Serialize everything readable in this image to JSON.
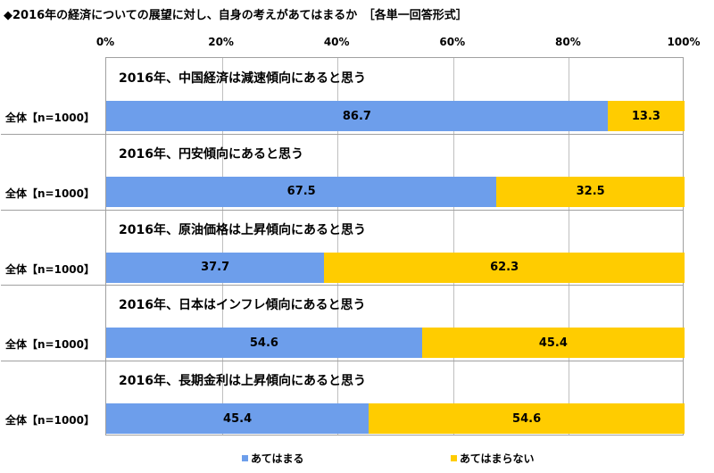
{
  "title": "◆2016年の経済についての展望に対し、自身の考えがあてはまるか　［各単一回答形式］",
  "colors": {
    "series_1": "#6d9eeb",
    "series_2": "#ffcc00"
  },
  "chart_data": {
    "type": "bar",
    "orientation": "horizontal",
    "stacked": true,
    "xlim": [
      0,
      100
    ],
    "tick_labels": [
      "0%",
      "20%",
      "40%",
      "60%",
      "80%",
      "100%"
    ],
    "legend_position": "bottom",
    "series": [
      {
        "name": "あてはまる",
        "color": "#6d9eeb"
      },
      {
        "name": "あてはまらない",
        "color": "#ffcc00"
      }
    ],
    "groups": [
      {
        "question": "2016年、中国経済は減速傾向にあると思う",
        "row_label": "全体【n=1000】",
        "values": [
          86.7,
          13.3
        ]
      },
      {
        "question": "2016年、円安傾向にあると思う",
        "row_label": "全体【n=1000】",
        "values": [
          67.5,
          32.5
        ]
      },
      {
        "question": "2016年、原油価格は上昇傾向にあると思う",
        "row_label": "全体【n=1000】",
        "values": [
          37.7,
          62.3
        ]
      },
      {
        "question": "2016年、日本はインフレ傾向にあると思う",
        "row_label": "全体【n=1000】",
        "values": [
          54.6,
          45.4
        ]
      },
      {
        "question": "2016年、長期金利は上昇傾向にあると思う",
        "row_label": "全体【n=1000】",
        "values": [
          45.4,
          54.6
        ]
      }
    ]
  }
}
